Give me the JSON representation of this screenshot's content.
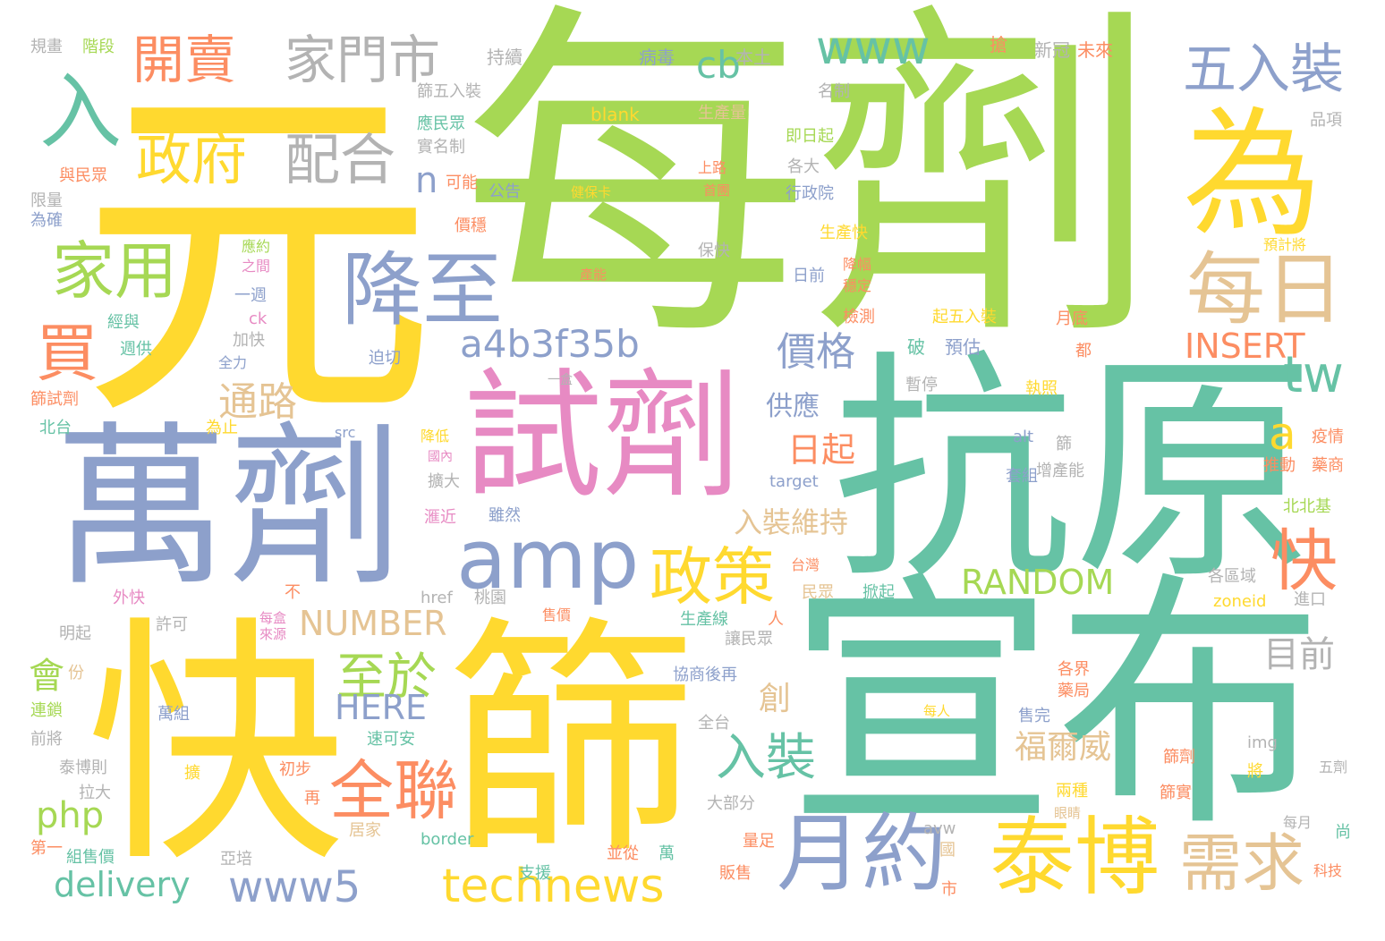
{
  "palette": {
    "yellow": "#ffd92f",
    "green": "#a6d854",
    "teal": "#66c2a5",
    "blue": "#8da0cb",
    "pink": "#e78ac3",
    "orange": "#fc8d62",
    "tan": "#e5c494",
    "gray": "#b3b3b3"
  },
  "words": [
    {
      "id": "w-yuan",
      "text": "元"
    },
    {
      "id": "w-meiji",
      "text": "每劑"
    },
    {
      "id": "w-kangyuan",
      "text": "抗原"
    },
    {
      "id": "w-xuanbu",
      "text": "宣布"
    },
    {
      "id": "w-wanji",
      "text": "萬劑"
    },
    {
      "id": "w-shiji",
      "text": "試劑"
    },
    {
      "id": "w-kuai-big",
      "text": "快"
    },
    {
      "id": "w-shai",
      "text": "篩"
    },
    {
      "id": "w-wei",
      "text": "為"
    },
    {
      "id": "w-meiri",
      "text": "每日"
    },
    {
      "id": "w-jiangzhi",
      "text": "降至"
    },
    {
      "id": "w-amp",
      "text": "amp"
    },
    {
      "id": "w-yueyue",
      "text": "月約"
    },
    {
      "id": "w-taibo",
      "text": "泰博"
    },
    {
      "id": "w-technews",
      "text": "technews"
    },
    {
      "id": "w-quanlian",
      "text": "全聯"
    },
    {
      "id": "w-www5",
      "text": "www5"
    },
    {
      "id": "w-www",
      "text": "www"
    },
    {
      "id": "w-kaimai",
      "text": "開賣"
    },
    {
      "id": "w-jiamenshi",
      "text": "家門市"
    },
    {
      "id": "w-wurzhuang",
      "text": "五入裝"
    },
    {
      "id": "w-ru",
      "text": "入"
    },
    {
      "id": "w-zhengfu",
      "text": "政府"
    },
    {
      "id": "w-peihe",
      "text": "配合"
    },
    {
      "id": "w-jiayong",
      "text": "家用"
    },
    {
      "id": "w-mai",
      "text": "買"
    },
    {
      "id": "w-zhengce",
      "text": "政策"
    },
    {
      "id": "w-kuai-small",
      "text": "快"
    },
    {
      "id": "w-xuqiu",
      "text": "需求"
    },
    {
      "id": "w-tw",
      "text": "tw"
    },
    {
      "id": "w-a",
      "text": "a"
    },
    {
      "id": "w-cb",
      "text": "cb"
    },
    {
      "id": "w-n",
      "text": "n"
    },
    {
      "id": "w-a4b3",
      "text": "a4b3f35b"
    },
    {
      "id": "w-jiage",
      "text": "價格"
    },
    {
      "id": "w-tonglu",
      "text": "通路"
    },
    {
      "id": "w-zhiyu",
      "text": "至於"
    },
    {
      "id": "w-ruzhuang",
      "text": "入裝"
    },
    {
      "id": "w-insert",
      "text": "INSERT"
    },
    {
      "id": "w-random",
      "text": "RANDOM"
    },
    {
      "id": "w-number",
      "text": "NUMBER"
    },
    {
      "id": "w-here",
      "text": "HERE"
    },
    {
      "id": "w-php",
      "text": "php"
    },
    {
      "id": "w-delivery",
      "text": "delivery"
    },
    {
      "id": "w-hui",
      "text": "會"
    },
    {
      "id": "w-gongying",
      "text": "供應"
    },
    {
      "id": "w-riqi",
      "text": "日起"
    },
    {
      "id": "w-ruzhuangweichi",
      "text": "入裝維持"
    },
    {
      "id": "w-fuerwei",
      "text": "福爾威"
    },
    {
      "id": "w-muqian",
      "text": "目前"
    },
    {
      "id": "w-chuang",
      "text": "創"
    },
    {
      "id": "w-guihua",
      "text": "規畫"
    },
    {
      "id": "w-jieduan",
      "text": "階段"
    },
    {
      "id": "w-chixu",
      "text": "持續"
    },
    {
      "id": "w-shaiwuru",
      "text": "篩五入裝"
    },
    {
      "id": "w-bingdu",
      "text": "病毒"
    },
    {
      "id": "w-bentu",
      "text": "本土"
    },
    {
      "id": "w-qiang",
      "text": "搶"
    },
    {
      "id": "w-xinguan",
      "text": "新冠"
    },
    {
      "id": "w-weilai",
      "text": "未來"
    },
    {
      "id": "w-mingzhi",
      "text": "名制"
    },
    {
      "id": "w-blank",
      "text": "blank"
    },
    {
      "id": "w-shengchanliang",
      "text": "生產量"
    },
    {
      "id": "w-pinxiang",
      "text": "品項"
    },
    {
      "id": "w-yingminzhong",
      "text": "應民眾"
    },
    {
      "id": "w-shimingzhi",
      "text": "實名制"
    },
    {
      "id": "w-jiriqi",
      "text": "即日起"
    },
    {
      "id": "w-yuminzhong",
      "text": "與民眾"
    },
    {
      "id": "w-keneng",
      "text": "可能"
    },
    {
      "id": "w-shanglu",
      "text": "上路"
    },
    {
      "id": "w-geda",
      "text": "各大"
    },
    {
      "id": "w-xianliang",
      "text": "限量"
    },
    {
      "id": "w-gonggao",
      "text": "公告"
    },
    {
      "id": "w-jianbaoka",
      "text": "健保卡"
    },
    {
      "id": "w-shoupi",
      "text": "首團"
    },
    {
      "id": "w-xingzhengyuan",
      "text": "行政院"
    },
    {
      "id": "w-weique",
      "text": "為確"
    },
    {
      "id": "w-yujijiang",
      "text": "預計將"
    },
    {
      "id": "w-jiawen",
      "text": "價穩"
    },
    {
      "id": "w-shengchankuai",
      "text": "生產快"
    },
    {
      "id": "w-yingyue",
      "text": "應約"
    },
    {
      "id": "w-baokuai",
      "text": "保快"
    },
    {
      "id": "w-zhijian",
      "text": "之間"
    },
    {
      "id": "w-channeng",
      "text": "產能"
    },
    {
      "id": "w-jiangfu",
      "text": "降幅"
    },
    {
      "id": "w-riqian",
      "text": "日前"
    },
    {
      "id": "w-wending",
      "text": "穩定"
    },
    {
      "id": "w-yizhou",
      "text": "一週"
    },
    {
      "id": "w-jiance",
      "text": "檢測"
    },
    {
      "id": "w-jingyu",
      "text": "經與"
    },
    {
      "id": "w-ck",
      "text": "ck"
    },
    {
      "id": "w-qiwuru",
      "text": "起五入裝"
    },
    {
      "id": "w-yuedi",
      "text": "月底"
    },
    {
      "id": "w-zhougong",
      "text": "週供"
    },
    {
      "id": "w-jiakuai",
      "text": "加快"
    },
    {
      "id": "w-po",
      "text": "破"
    },
    {
      "id": "w-yugu",
      "text": "預估"
    },
    {
      "id": "w-pojie",
      "text": "迫切"
    },
    {
      "id": "w-quanli",
      "text": "全力"
    },
    {
      "id": "w-dou",
      "text": "都"
    },
    {
      "id": "w-shaishiji",
      "text": "篩試劑"
    },
    {
      "id": "w-yihe",
      "text": "一盒"
    },
    {
      "id": "w-zanting",
      "text": "暫停"
    },
    {
      "id": "w-zhizhao",
      "text": "執照"
    },
    {
      "id": "w-beitai",
      "text": "北台"
    },
    {
      "id": "w-weizhi",
      "text": "為止"
    },
    {
      "id": "w-src",
      "text": "src"
    },
    {
      "id": "w-jiangdi",
      "text": "降低"
    },
    {
      "id": "w-alt",
      "text": "alt"
    },
    {
      "id": "w-shai-small",
      "text": "篩"
    },
    {
      "id": "w-yiqing",
      "text": "疫情"
    },
    {
      "id": "w-guonei",
      "text": "國內"
    },
    {
      "id": "w-zengchanneng",
      "text": "增產能"
    },
    {
      "id": "w-tuidong",
      "text": "推動"
    },
    {
      "id": "w-yaoshang",
      "text": "藥商"
    },
    {
      "id": "w-kuoda",
      "text": "擴大"
    },
    {
      "id": "w-target",
      "text": "target"
    },
    {
      "id": "w-taozu",
      "text": "套組"
    },
    {
      "id": "w-huajin",
      "text": "滙近"
    },
    {
      "id": "w-suiran",
      "text": "雖然"
    },
    {
      "id": "w-beibeiji",
      "text": "北北基"
    },
    {
      "id": "w-taiwan",
      "text": "台灣"
    },
    {
      "id": "w-minzhong",
      "text": "民眾"
    },
    {
      "id": "w-xianqi",
      "text": "掀起"
    },
    {
      "id": "w-gequyu",
      "text": "各區域"
    },
    {
      "id": "w-waikuai",
      "text": "外快"
    },
    {
      "id": "w-bu",
      "text": "不"
    },
    {
      "id": "w-href",
      "text": "href"
    },
    {
      "id": "w-taoyuan",
      "text": "桃園"
    },
    {
      "id": "w-zoneid",
      "text": "zoneid"
    },
    {
      "id": "w-jinkou",
      "text": "進口"
    },
    {
      "id": "w-mingqi",
      "text": "明起"
    },
    {
      "id": "w-xuke",
      "text": "許可"
    },
    {
      "id": "w-meihe",
      "text": "每盒"
    },
    {
      "id": "w-laiyuan",
      "text": "來源"
    },
    {
      "id": "w-shoujia",
      "text": "售價"
    },
    {
      "id": "w-shengchanxian",
      "text": "生產線"
    },
    {
      "id": "w-ren",
      "text": "人"
    },
    {
      "id": "w-rangminzhong",
      "text": "讓民眾"
    },
    {
      "id": "w-fen",
      "text": "份"
    },
    {
      "id": "w-xieshanghou",
      "text": "協商後再"
    },
    {
      "id": "w-gejie",
      "text": "各界"
    },
    {
      "id": "w-yaoju",
      "text": "藥局"
    },
    {
      "id": "w-liansuo",
      "text": "連鎖"
    },
    {
      "id": "w-wanzu",
      "text": "萬組"
    },
    {
      "id": "w-meiren",
      "text": "每人"
    },
    {
      "id": "w-qianjiang",
      "text": "前將"
    },
    {
      "id": "w-suikean",
      "text": "速可安"
    },
    {
      "id": "w-quantai",
      "text": "全台"
    },
    {
      "id": "w-shouwan",
      "text": "售完"
    },
    {
      "id": "w-img",
      "text": "img"
    },
    {
      "id": "w-taibozhe",
      "text": "泰博則"
    },
    {
      "id": "w-kuo",
      "text": "擴"
    },
    {
      "id": "w-chubu",
      "text": "初步"
    },
    {
      "id": "w-shaiji",
      "text": "篩劑"
    },
    {
      "id": "w-jiang",
      "text": "將"
    },
    {
      "id": "w-wuji",
      "text": "五劑"
    },
    {
      "id": "w-lada",
      "text": "拉大"
    },
    {
      "id": "w-zai",
      "text": "再"
    },
    {
      "id": "w-dabufen",
      "text": "大部分"
    },
    {
      "id": "w-liangzhong",
      "text": "兩種"
    },
    {
      "id": "w-shaishi",
      "text": "篩實"
    },
    {
      "id": "w-yanjing",
      "text": "眼睛"
    },
    {
      "id": "w-meiyue",
      "text": "每月"
    },
    {
      "id": "w-juzha",
      "text": "居家"
    },
    {
      "id": "w-border",
      "text": "border"
    },
    {
      "id": "w-avw",
      "text": "avw"
    },
    {
      "id": "w-shang",
      "text": "尚"
    },
    {
      "id": "w-diyi",
      "text": "第一"
    },
    {
      "id": "w-zushoujia",
      "text": "組售價"
    },
    {
      "id": "w-yapei",
      "text": "亞培"
    },
    {
      "id": "w-bingcong",
      "text": "並從"
    },
    {
      "id": "w-wan",
      "text": "萬"
    },
    {
      "id": "w-liangzu",
      "text": "量足"
    },
    {
      "id": "w-guo",
      "text": "國"
    },
    {
      "id": "w-zhiyuan",
      "text": "支援"
    },
    {
      "id": "w-fanshou",
      "text": "販售"
    },
    {
      "id": "w-shi",
      "text": "市"
    },
    {
      "id": "w-keji",
      "text": "科技"
    }
  ]
}
